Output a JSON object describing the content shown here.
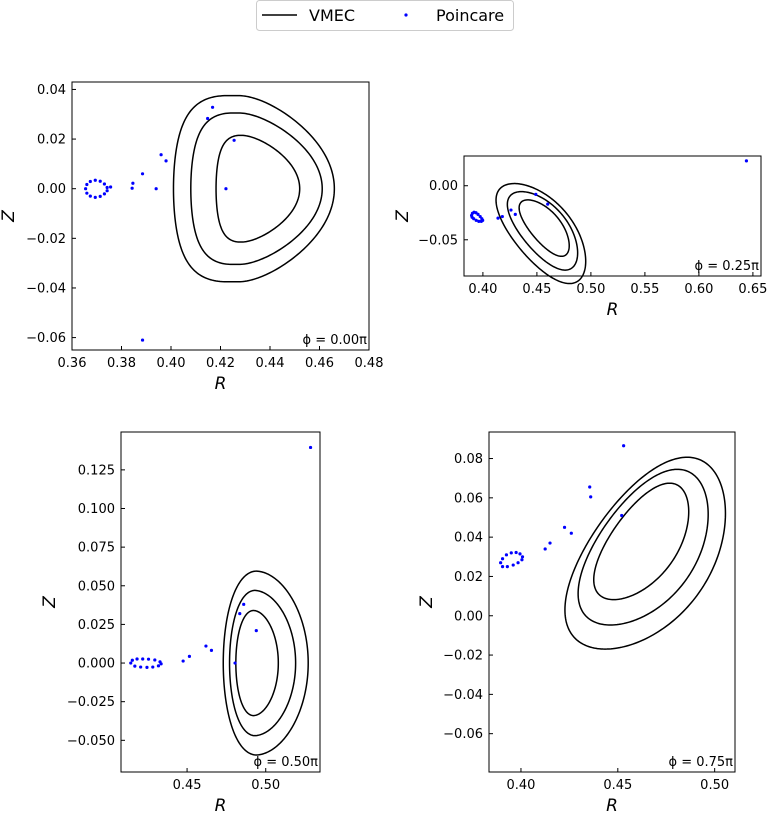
{
  "colors": {
    "vmec": "#000000",
    "poincare": "#0000ff"
  },
  "legend": {
    "placement": "top-center",
    "vmec_label": "VMEC",
    "poincare_label": "Poincare"
  },
  "chart_data": [
    {
      "type": "line",
      "annotation": "ϕ = 0.00π",
      "xlabel": "R",
      "ylabel": "Z",
      "xlim": [
        0.36,
        0.48
      ],
      "ylim": [
        -0.065,
        0.043
      ],
      "xticks": [
        "0.36",
        "0.38",
        "0.40",
        "0.42",
        "0.44",
        "0.46",
        "0.48"
      ],
      "yticks": [
        "−0.06",
        "−0.04",
        "−0.02",
        "0.00",
        "0.02",
        "0.04"
      ],
      "xtick_values": [
        0.36,
        0.38,
        0.4,
        0.42,
        0.44,
        0.46,
        0.48
      ],
      "ytick_values": [
        -0.06,
        -0.04,
        -0.02,
        0.0,
        0.02,
        0.04
      ],
      "vmec_surfaces": [
        {
          "center": [
            0.4355,
            0.0
          ],
          "a_in": 0.0173,
          "a_out": 0.0165,
          "b": 0.0215,
          "tri": 0.45,
          "tilt": 0
        },
        {
          "center": [
            0.4376,
            0.0
          ],
          "a_in": 0.0296,
          "a_out": 0.0235,
          "b": 0.0305,
          "tri": 0.45,
          "tilt": 0
        },
        {
          "center": [
            0.439,
            0.0
          ],
          "a_in": 0.038,
          "a_out": 0.027,
          "b": 0.0375,
          "tri": 0.45,
          "tilt": 0
        }
      ],
      "poincare": [
        [
          0.3655,
          0.0
        ],
        [
          0.366,
          0.0017
        ],
        [
          0.3674,
          0.0029
        ],
        [
          0.3694,
          0.0034
        ],
        [
          0.3714,
          0.003
        ],
        [
          0.3731,
          0.0019
        ],
        [
          0.3742,
          0.0005
        ],
        [
          0.3742,
          -0.0008
        ],
        [
          0.3731,
          -0.0021
        ],
        [
          0.3714,
          -0.0031
        ],
        [
          0.3694,
          -0.0035
        ],
        [
          0.3674,
          -0.003
        ],
        [
          0.366,
          -0.0018
        ],
        [
          0.3756,
          0.0007
        ],
        [
          0.3843,
          0.0002
        ],
        [
          0.3846,
          0.0022
        ],
        [
          0.3885,
          0.006
        ],
        [
          0.394,
          0.0
        ],
        [
          0.396,
          0.0137
        ],
        [
          0.398,
          0.0112
        ],
        [
          0.4148,
          0.0283
        ],
        [
          0.4168,
          0.0328
        ],
        [
          0.4255,
          0.0195
        ],
        [
          0.4222,
          0.0
        ],
        [
          0.3885,
          -0.061
        ]
      ]
    },
    {
      "type": "line",
      "annotation": "ϕ = 0.25π",
      "xlabel": "R",
      "ylabel": "Z",
      "xlim": [
        0.3825,
        0.6575
      ],
      "ylim": [
        -0.0835,
        0.0275
      ],
      "xticks": [
        "0.40",
        "0.45",
        "0.50",
        "0.55",
        "0.60",
        "0.65"
      ],
      "yticks": [
        "−0.05",
        "0.00"
      ],
      "xtick_values": [
        0.4,
        0.45,
        0.5,
        0.55,
        0.6,
        0.65
      ],
      "ytick_values": [
        -0.05,
        0.0
      ],
      "vmec_surfaces": [
        {
          "center": [
            0.458,
            -0.038
          ],
          "a_in": 0.014,
          "a_out": 0.014,
          "b": 0.032,
          "tri": 0.15,
          "tilt": 40
        },
        {
          "center": [
            0.457,
            -0.04
          ],
          "a_in": 0.021,
          "a_out": 0.021,
          "b": 0.044,
          "tri": 0.15,
          "tilt": 40
        },
        {
          "center": [
            0.456,
            -0.042
          ],
          "a_in": 0.027,
          "a_out": 0.027,
          "b": 0.056,
          "tri": 0.15,
          "tilt": 40
        }
      ],
      "poincare": [
        [
          0.3895,
          -0.0275
        ],
        [
          0.3903,
          -0.0255
        ],
        [
          0.3918,
          -0.0245
        ],
        [
          0.3936,
          -0.025
        ],
        [
          0.3955,
          -0.0265
        ],
        [
          0.3975,
          -0.0285
        ],
        [
          0.399,
          -0.0305
        ],
        [
          0.3998,
          -0.032
        ],
        [
          0.3985,
          -0.033
        ],
        [
          0.3962,
          -0.033
        ],
        [
          0.3938,
          -0.032
        ],
        [
          0.3915,
          -0.0305
        ],
        [
          0.39,
          -0.0292
        ],
        [
          0.414,
          -0.03
        ],
        [
          0.418,
          -0.0285
        ],
        [
          0.426,
          -0.0225
        ],
        [
          0.43,
          -0.0265
        ],
        [
          0.449,
          -0.008
        ],
        [
          0.46,
          -0.017
        ],
        [
          0.644,
          0.023
        ]
      ]
    },
    {
      "type": "line",
      "annotation": "ϕ = 0.50π",
      "xlabel": "R",
      "ylabel": "Z",
      "xlim": [
        0.408,
        0.5345
      ],
      "ylim": [
        -0.0705,
        0.1495
      ],
      "xticks": [
        "0.45",
        "0.50"
      ],
      "yticks": [
        "−0.050",
        "−0.025",
        "0.000",
        "0.025",
        "0.050",
        "0.075",
        "0.100",
        "0.125"
      ],
      "xtick_values": [
        0.45,
        0.5
      ],
      "ytick_values": [
        -0.05,
        -0.025,
        0.0,
        0.025,
        0.05,
        0.075,
        0.1,
        0.125
      ],
      "vmec_surfaces": [
        {
          "center": [
            0.4935,
            0.0
          ],
          "a_in": 0.0125,
          "a_out": 0.0145,
          "b": 0.034,
          "tri": 0.1,
          "tilt": 0
        },
        {
          "center": [
            0.495,
            0.0
          ],
          "a_in": 0.018,
          "a_out": 0.024,
          "b": 0.047,
          "tri": 0.1,
          "tilt": 0
        },
        {
          "center": [
            0.4965,
            0.0
          ],
          "a_in": 0.0235,
          "a_out": 0.0305,
          "b": 0.0595,
          "tri": 0.1,
          "tilt": 0
        }
      ],
      "poincare": [
        [
          0.4142,
          0.0
        ],
        [
          0.4152,
          0.0018
        ],
        [
          0.4182,
          0.0026
        ],
        [
          0.4218,
          0.0026
        ],
        [
          0.4255,
          0.0025
        ],
        [
          0.4295,
          0.002
        ],
        [
          0.4328,
          0.0008
        ],
        [
          0.4335,
          -0.0005
        ],
        [
          0.4318,
          -0.0018
        ],
        [
          0.4282,
          -0.0026
        ],
        [
          0.4245,
          -0.0028
        ],
        [
          0.4205,
          -0.0026
        ],
        [
          0.4168,
          -0.002
        ],
        [
          0.4475,
          0.0013
        ],
        [
          0.4515,
          0.0043
        ],
        [
          0.462,
          0.011
        ],
        [
          0.4655,
          0.0082
        ],
        [
          0.4835,
          0.032
        ],
        [
          0.486,
          0.038
        ],
        [
          0.494,
          0.021
        ],
        [
          0.4805,
          0.0
        ],
        [
          0.5285,
          0.1395
        ]
      ]
    },
    {
      "type": "line",
      "annotation": "ϕ = 0.75π",
      "xlabel": "R",
      "ylabel": "Z",
      "xlim": [
        0.3835,
        0.5105
      ],
      "ylim": [
        -0.0795,
        0.0935
      ],
      "xticks": [
        "0.40",
        "0.45",
        "0.50"
      ],
      "yticks": [
        "−0.06",
        "−0.04",
        "−0.02",
        "0.00",
        "0.02",
        "0.04",
        "0.06",
        "0.08"
      ],
      "xtick_values": [
        0.4,
        0.45,
        0.5
      ],
      "ytick_values": [
        -0.06,
        -0.04,
        -0.02,
        0.0,
        0.02,
        0.04,
        0.06,
        0.08
      ],
      "vmec_surfaces": [
        {
          "center": [
            0.4635,
            0.0365
          ],
          "a_in": 0.017,
          "a_out": 0.017,
          "b": 0.0345,
          "tri": 0.15,
          "tilt": -36
        },
        {
          "center": [
            0.465,
            0.033
          ],
          "a_in": 0.025,
          "a_out": 0.025,
          "b": 0.0455,
          "tri": 0.15,
          "tilt": -36
        },
        {
          "center": [
            0.4665,
            0.0295
          ],
          "a_in": 0.031,
          "a_out": 0.031,
          "b": 0.056,
          "tri": 0.15,
          "tilt": -36
        }
      ],
      "poincare": [
        [
          0.3895,
          0.027
        ],
        [
          0.3905,
          0.029
        ],
        [
          0.3925,
          0.031
        ],
        [
          0.395,
          0.032
        ],
        [
          0.3975,
          0.0322
        ],
        [
          0.3995,
          0.0315
        ],
        [
          0.4008,
          0.03
        ],
        [
          0.4005,
          0.0285
        ],
        [
          0.3985,
          0.027
        ],
        [
          0.396,
          0.0258
        ],
        [
          0.393,
          0.025
        ],
        [
          0.3905,
          0.025
        ],
        [
          0.4125,
          0.034
        ],
        [
          0.415,
          0.037
        ],
        [
          0.4225,
          0.045
        ],
        [
          0.426,
          0.042
        ],
        [
          0.4355,
          0.0655
        ],
        [
          0.436,
          0.0605
        ],
        [
          0.452,
          0.051
        ],
        [
          0.453,
          0.0865
        ]
      ]
    }
  ]
}
